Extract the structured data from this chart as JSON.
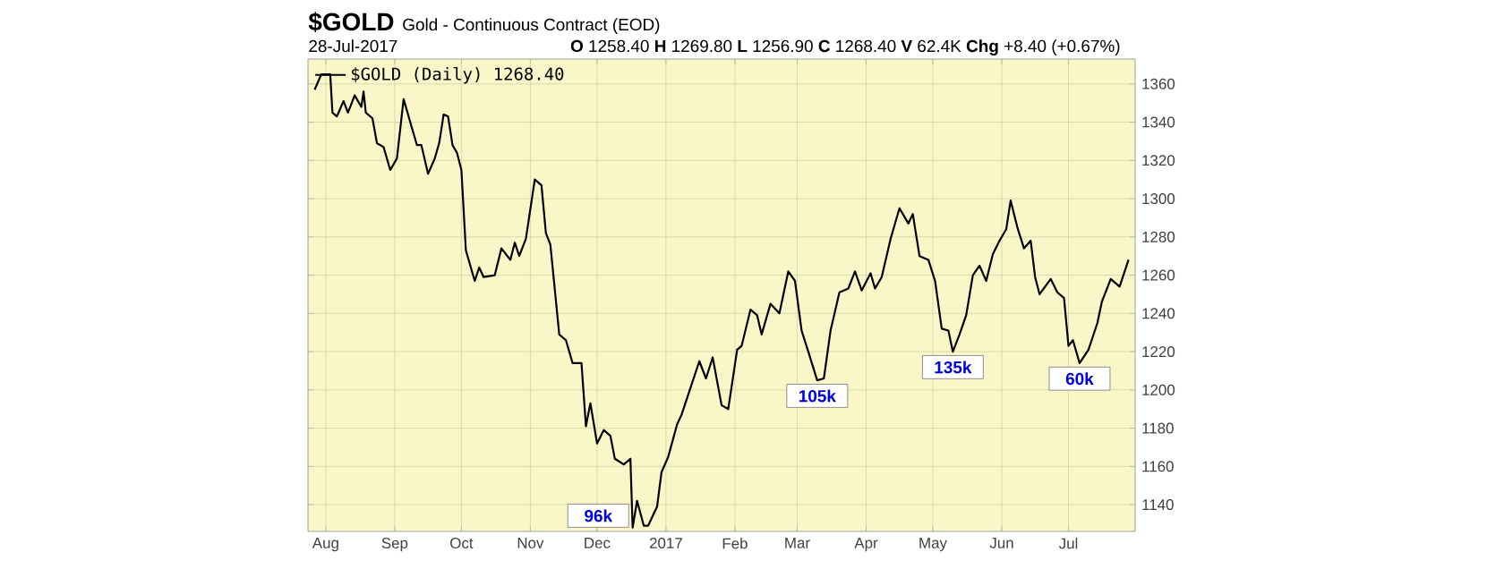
{
  "chart_data": {
    "type": "line",
    "title": "$GOLD",
    "subtitle": "Gold - Continuous Contract (EOD)",
    "annotations": [
      "28-Jul-2017",
      "**O** 1258.40 **H** 1269.80 **L** 1256.90 **C** 1268.40 **V** 62.4K **Chg** +8.40 (+0.67%)",
      {
        "text": "96k",
        "x": "2016-12-17",
        "y": 1128
      },
      {
        "text": "105k",
        "x": "2017-03-10",
        "y": 1205
      },
      {
        "text": "135k",
        "x": "2017-05-10",
        "y": 1220
      },
      {
        "text": "60k",
        "x": "2017-07-06",
        "y": 1214
      }
    ],
    "x": [
      "2016-07-27",
      "2016-07-30",
      "2016-08-03",
      "2016-08-04",
      "2016-08-06",
      "2016-08-09",
      "2016-08-11",
      "2016-08-14",
      "2016-08-17",
      "2016-08-18",
      "2016-08-19",
      "2016-08-22",
      "2016-08-24",
      "2016-08-27",
      "2016-08-30",
      "2016-09-02",
      "2016-09-05",
      "2016-09-08",
      "2016-09-11",
      "2016-09-13",
      "2016-09-16",
      "2016-09-19",
      "2016-09-21",
      "2016-09-23",
      "2016-09-25",
      "2016-09-27",
      "2016-09-29",
      "2016-10-01",
      "2016-10-03",
      "2016-10-07",
      "2016-10-09",
      "2016-10-11",
      "2016-10-16",
      "2016-10-19",
      "2016-10-23",
      "2016-10-25",
      "2016-10-27",
      "2016-10-30",
      "2016-11-03",
      "2016-11-06",
      "2016-11-08",
      "2016-11-10",
      "2016-11-14",
      "2016-11-17",
      "2016-11-20",
      "2016-11-24",
      "2016-11-26",
      "2016-11-28",
      "2016-12-01",
      "2016-12-04",
      "2016-12-07",
      "2016-12-09",
      "2016-12-13",
      "2016-12-16",
      "2016-12-17",
      "2016-12-19",
      "2016-12-22",
      "2016-12-24",
      "2016-12-28",
      "2016-12-30",
      "2017-01-02",
      "2017-01-06",
      "2017-01-08",
      "2017-01-12",
      "2017-01-16",
      "2017-01-19",
      "2017-01-22",
      "2017-01-26",
      "2017-01-29",
      "2017-02-02",
      "2017-02-04",
      "2017-02-08",
      "2017-02-11",
      "2017-02-13",
      "2017-02-17",
      "2017-02-21",
      "2017-02-25",
      "2017-02-28",
      "2017-03-03",
      "2017-03-06",
      "2017-03-10",
      "2017-03-13",
      "2017-03-16",
      "2017-03-20",
      "2017-03-24",
      "2017-03-27",
      "2017-03-30",
      "2017-04-03",
      "2017-04-05",
      "2017-04-08",
      "2017-04-12",
      "2017-04-16",
      "2017-04-20",
      "2017-04-22",
      "2017-04-25",
      "2017-04-29",
      "2017-05-02",
      "2017-05-05",
      "2017-05-08",
      "2017-05-10",
      "2017-05-13",
      "2017-05-16",
      "2017-05-19",
      "2017-05-22",
      "2017-05-25",
      "2017-05-28",
      "2017-05-31",
      "2017-06-03",
      "2017-06-05",
      "2017-06-08",
      "2017-06-11",
      "2017-06-14",
      "2017-06-16",
      "2017-06-18",
      "2017-06-23",
      "2017-06-26",
      "2017-06-29",
      "2017-07-01",
      "2017-07-03",
      "2017-07-06",
      "2017-07-10",
      "2017-07-14",
      "2017-07-16",
      "2017-07-20",
      "2017-07-24",
      "2017-07-28"
    ],
    "series": [
      {
        "name": "$GOLD (Daily) 1268.40",
        "color": "#000000",
        "values": [
          1357,
          1365,
          1365,
          1345,
          1343,
          1351,
          1345,
          1354,
          1348,
          1356,
          1345,
          1342,
          1329,
          1327,
          1315,
          1321,
          1352,
          1340,
          1328,
          1328,
          1313,
          1321,
          1329,
          1344,
          1343,
          1328,
          1324,
          1315,
          1273,
          1257,
          1264,
          1259,
          1260,
          1274,
          1268,
          1277,
          1270,
          1279,
          1310,
          1307,
          1282,
          1276,
          1229,
          1226,
          1214,
          1214,
          1181,
          1193,
          1172,
          1179,
          1176,
          1164,
          1161,
          1164,
          1128,
          1142,
          1129,
          1129,
          1139,
          1157,
          1165,
          1182,
          1187,
          1201,
          1215,
          1206,
          1217,
          1192,
          1190,
          1221,
          1223,
          1242,
          1239,
          1229,
          1245,
          1240,
          1262,
          1257,
          1231,
          1220,
          1205,
          1206,
          1231,
          1251,
          1253,
          1262,
          1252,
          1261,
          1253,
          1259,
          1279,
          1295,
          1287,
          1292,
          1270,
          1268,
          1257,
          1232,
          1231,
          1220,
          1229,
          1239,
          1260,
          1265,
          1257,
          1271,
          1278,
          1284,
          1299,
          1285,
          1274,
          1278,
          1259,
          1250,
          1258,
          1251,
          1248,
          1223,
          1226,
          1214,
          1221,
          1235,
          1246,
          1258,
          1254,
          1268
        ]
      }
    ],
    "xlim": [
      "2016-07-24",
      "2017-07-31"
    ],
    "xticks": [
      {
        "value": "2016-08-01",
        "label": "Aug"
      },
      {
        "value": "2016-09-01",
        "label": "Sep"
      },
      {
        "value": "2016-10-01",
        "label": "Oct"
      },
      {
        "value": "2016-11-01",
        "label": "Nov"
      },
      {
        "value": "2016-12-01",
        "label": "Dec"
      },
      {
        "value": "2017-01-01",
        "label": "2017"
      },
      {
        "value": "2017-02-01",
        "label": "Feb"
      },
      {
        "value": "2017-03-01",
        "label": "Mar"
      },
      {
        "value": "2017-04-01",
        "label": "Apr"
      },
      {
        "value": "2017-05-01",
        "label": "May"
      },
      {
        "value": "2017-06-01",
        "label": "Jun"
      },
      {
        "value": "2017-07-01",
        "label": "Jul"
      }
    ],
    "ylim": [
      1126,
      1373
    ],
    "yticks": [
      1140,
      1160,
      1180,
      1200,
      1220,
      1240,
      1260,
      1280,
      1300,
      1320,
      1340,
      1360
    ],
    "grid": true,
    "legend": "top left",
    "marker": "none",
    "line_style": "solid"
  }
}
